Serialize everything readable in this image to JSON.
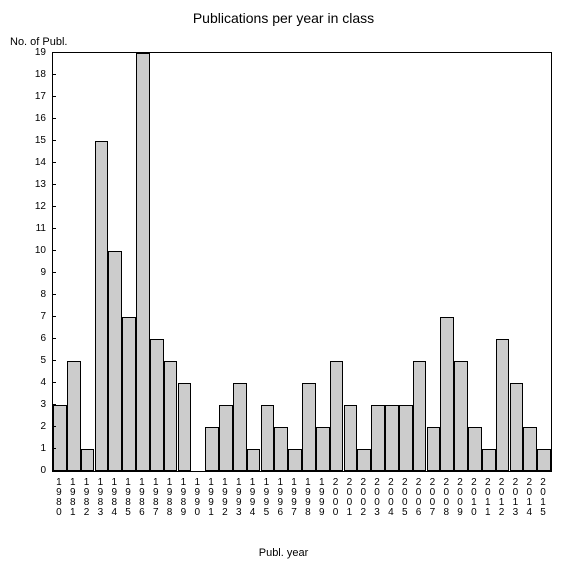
{
  "chart": {
    "type": "bar",
    "title": "Publications per year in class",
    "title_fontsize": 14,
    "y_label": "No. of Publ.",
    "x_label": "Publ. year",
    "label_fontsize": 11,
    "tick_fontsize": 10,
    "background_color": "#ffffff",
    "bar_color": "#cccccc",
    "border_color": "#000000",
    "ylim": [
      0,
      19
    ],
    "y_ticks": [
      0,
      1,
      2,
      3,
      4,
      5,
      6,
      7,
      8,
      9,
      10,
      11,
      12,
      13,
      14,
      15,
      16,
      17,
      18,
      19
    ],
    "bar_width_ratio": 1.0,
    "categories": [
      "1980",
      "1981",
      "1982",
      "1983",
      "1984",
      "1985",
      "1986",
      "1987",
      "1988",
      "1989",
      "1990",
      "1991",
      "1992",
      "1993",
      "1994",
      "1995",
      "1996",
      "1997",
      "1998",
      "1999",
      "2000",
      "2001",
      "2002",
      "2003",
      "2004",
      "2005",
      "2006",
      "2007",
      "2008",
      "2009",
      "2010",
      "2011",
      "2012",
      "2013",
      "2014",
      "2015"
    ],
    "values": [
      3,
      5,
      1,
      15,
      10,
      7,
      19,
      6,
      5,
      4,
      0,
      2,
      3,
      4,
      1,
      3,
      2,
      1,
      4,
      2,
      5,
      3,
      1,
      3,
      3,
      3,
      5,
      2,
      7,
      5,
      2,
      1,
      6,
      4,
      2,
      1
    ]
  }
}
